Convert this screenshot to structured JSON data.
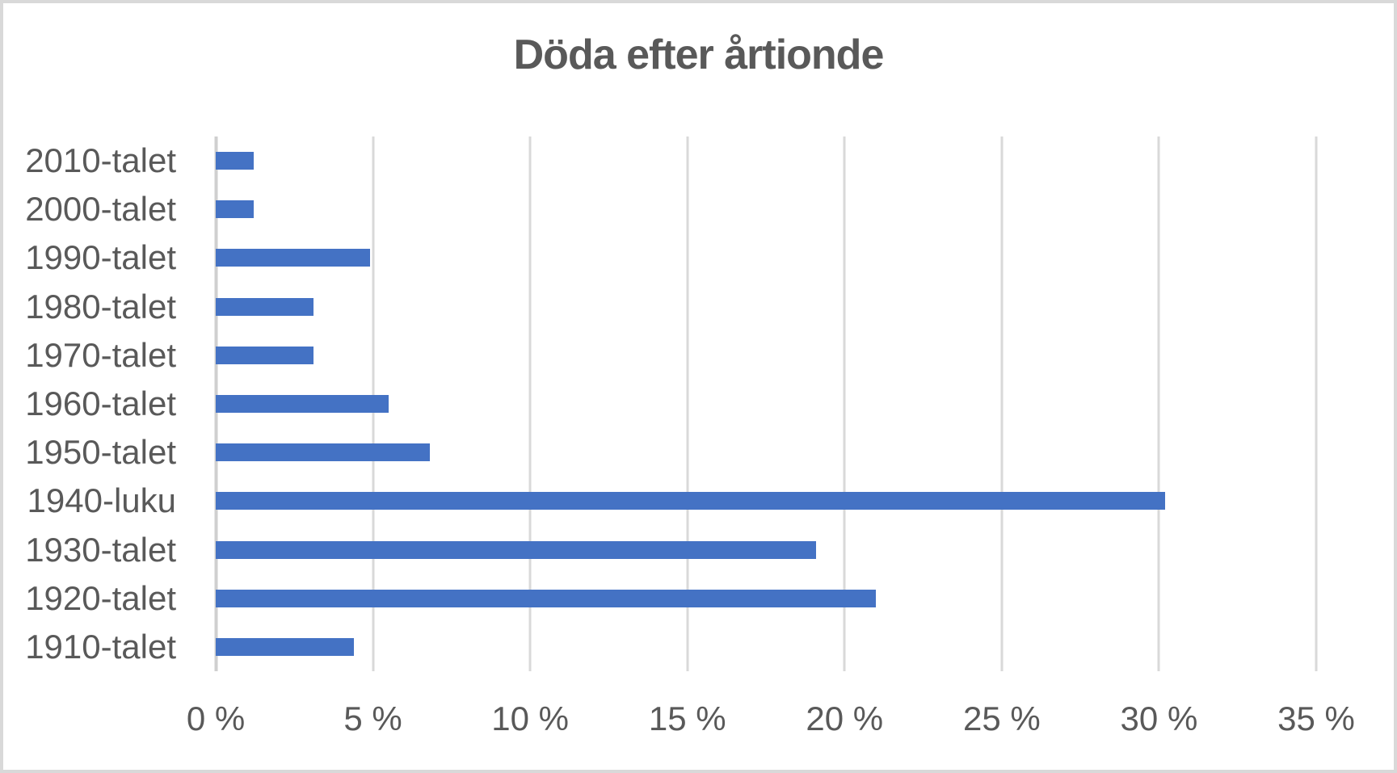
{
  "window": {
    "background_color": "#FFFFFF",
    "frame_border_color": "#D9D9D9"
  },
  "chart_data": {
    "type": "bar",
    "orientation": "horizontal",
    "title": "Döda efter årtionde",
    "categories": [
      "2010-talet",
      "2000-talet",
      "1990-talet",
      "1980-talet",
      "1970-talet",
      "1960-talet",
      "1950-talet",
      "1940-luku",
      "1930-talet",
      "1920-talet",
      "1910-talet"
    ],
    "values": [
      1.2,
      1.2,
      4.9,
      3.1,
      3.1,
      5.5,
      6.8,
      30.2,
      19.1,
      21.0,
      4.4
    ],
    "value_unit": "%",
    "xlabel": "",
    "ylabel": "",
    "xlim": [
      0,
      35
    ],
    "x_ticks": [
      {
        "value": 0,
        "label": "0 %"
      },
      {
        "value": 5,
        "label": "5 %"
      },
      {
        "value": 10,
        "label": "10 %"
      },
      {
        "value": 15,
        "label": "15 %"
      },
      {
        "value": 20,
        "label": "20 %"
      },
      {
        "value": 25,
        "label": "25 %"
      },
      {
        "value": 30,
        "label": "30 %"
      },
      {
        "value": 35,
        "label": "35 %"
      }
    ],
    "grid": "vertical-gridlines-on",
    "legend": "none",
    "data_labels": "none",
    "colors": {
      "bar": "#4472C4",
      "gridline": "#D9D9D9",
      "axis_line": "#CFCFCF",
      "tick_text": "#595959",
      "title_text": "#595959"
    }
  }
}
